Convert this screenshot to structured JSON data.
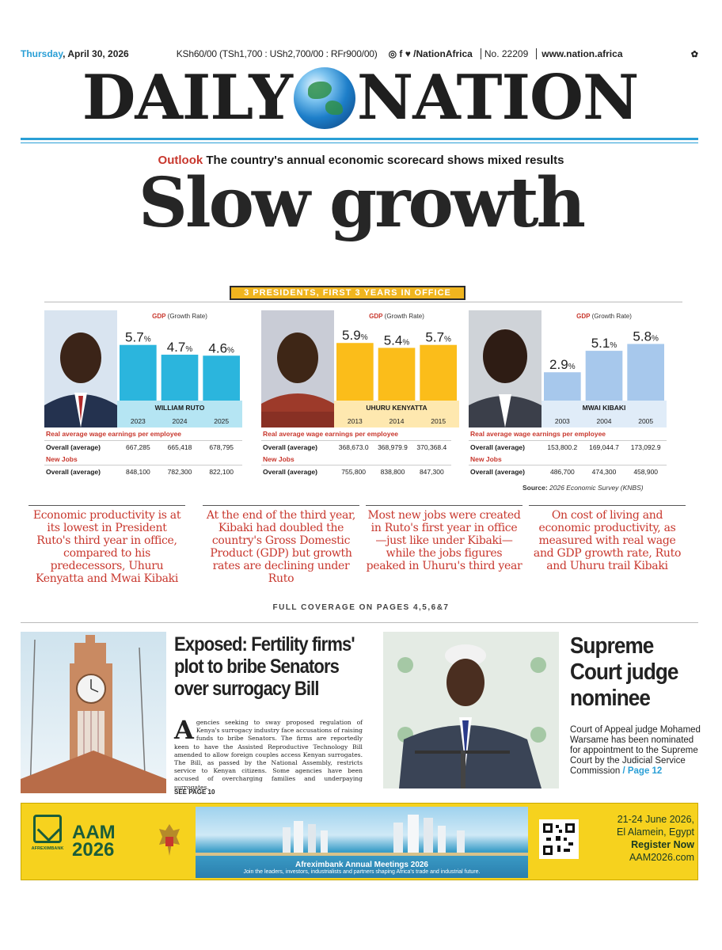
{
  "topstrip": {
    "day": "Thursday",
    "date": ", April 30, 2026",
    "price": "KSh60/00 (TSh1,700 : USh2,700/00 : RFr900/00)",
    "social": "◎ f ♥ /NationAfrica",
    "issue": "No. 22209",
    "website": "www.nation.africa"
  },
  "masthead": {
    "left": "DAILY",
    "right": "NATION"
  },
  "kicker": {
    "label": "Outlook",
    "text": " The country's annual economic scorecard shows mixed results"
  },
  "headline": "Slow growth",
  "infographic": {
    "title": "3 PRESIDENTS, FIRST 3 YEARS IN OFFICE",
    "wage_heading": "Real average wage earnings per employee",
    "jobs_heading": "New Jobs",
    "row_label": "Overall (average)",
    "source_label": "Source:",
    "source_text": " 2026 Economic Survey (KNBS)"
  },
  "chart_data": [
    {
      "type": "bar",
      "title": "GDP",
      "subtitle": "(Growth Rate)",
      "president": "WILLIAM RUTO",
      "categories": [
        "2023",
        "2024",
        "2025"
      ],
      "values": [
        5.7,
        4.7,
        4.6
      ],
      "value_labels": [
        "5.7",
        "4.7",
        "4.6"
      ],
      "unit": "%",
      "bar_color": "#2bb5dd",
      "band_color": "#2bb5dd",
      "ylim": [
        0,
        6
      ],
      "wages": [
        "667,285",
        "665,418",
        "678,795"
      ],
      "jobs": [
        "848,100",
        "782,300",
        "822,100"
      ]
    },
    {
      "type": "bar",
      "title": "GDP",
      "subtitle": "(Growth Rate)",
      "president": "UHURU KENYATTA",
      "categories": [
        "2013",
        "2014",
        "2015"
      ],
      "values": [
        5.9,
        5.4,
        5.7
      ],
      "value_labels": [
        "5.9",
        "5.4",
        "5.7"
      ],
      "unit": "%",
      "bar_color": "#fbbd1a",
      "band_color": "#fbbd1a",
      "ylim": [
        0,
        6
      ],
      "wages": [
        "368,673.0",
        "368,979.9",
        "370,368.4"
      ],
      "jobs": [
        "755,800",
        "838,800",
        "847,300"
      ]
    },
    {
      "type": "bar",
      "title": "GDP",
      "subtitle": "(Growth Rate)",
      "president": "MWAI KIBAKI",
      "categories": [
        "2003",
        "2004",
        "2005"
      ],
      "values": [
        2.9,
        5.1,
        5.8
      ],
      "value_labels": [
        "2.9",
        "5.1",
        "5.8"
      ],
      "unit": "%",
      "bar_color": "#a7c8ec",
      "band_color": "#a7c8ec",
      "ylim": [
        0,
        6
      ],
      "wages": [
        "153,800.2",
        "169,044.7",
        "173,092.9"
      ],
      "jobs": [
        "486,700",
        "474,300",
        "458,900"
      ]
    }
  ],
  "quotes": [
    "Economic productivity is at its lowest in President Ruto's third year in office, compared to his predecessors, Uhuru Kenyatta and Mwai Kibaki",
    "At the end of the third year, Kibaki had doubled the country's Gross Domestic Product (GDP) but growth rates are declining under Ruto",
    "Most new jobs were created in Ruto's first year in office—just like under Kibaki—while the jobs figures peaked in Uhuru's third year",
    "On cost of living and economic productivity, as measured with real wage and GDP growth rate, Ruto and Uhuru trail Kibaki"
  ],
  "coverage": "FULL COVERAGE ON PAGES 4,5,6&7",
  "story1": {
    "title": "Exposed: Fertility firms' plot to bribe Senators over surrogacy Bill",
    "dropcap": "A",
    "body": "gencies seeking to sway proposed regulation of Kenya's surrogacy industry face accusations of raising funds to bribe Senators. The firms are reportedly keen to have the Assisted Reproductive Technology Bill amended to allow foreign couples access Kenyan surrogates. The Bill, as passed by the National Assembly, restricts service to Kenyan citizens. Some agencies have been accused of overcharging families and underpaying surrogates.",
    "see": "SEE PAGE 10"
  },
  "story2": {
    "title": "Supreme Court judge nominee",
    "body": "Court of Appeal judge Mohamed Warsame has been nominated for appointment to the Supreme Court by the Judicial Service Commission",
    "page": " / Page 12"
  },
  "ad": {
    "bank": "AFREXIMBANK",
    "aam": "AAM",
    "year": "2026",
    "event": "Afreximbank Annual Meetings 2026",
    "tagline": "Join the leaders, investors, industrialists and partners shaping Africa's trade and industrial future.",
    "dates": "21-24 June 2026,",
    "location": "El Alamein, Egypt",
    "cta": "Register Now",
    "url": "AAM2026.com"
  }
}
